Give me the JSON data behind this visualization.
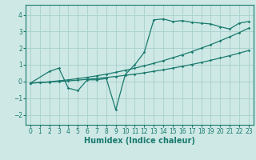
{
  "background_color": "#cde8e5",
  "grid_color": "#aacfcc",
  "line_color": "#1a7a6e",
  "marker_color": "#1a7a6e",
  "xlabel": "Humidex (Indice chaleur)",
  "xlabel_fontsize": 7,
  "xlim": [
    -0.5,
    23.5
  ],
  "ylim": [
    -2.6,
    4.6
  ],
  "xticks": [
    0,
    1,
    2,
    3,
    4,
    5,
    6,
    7,
    8,
    9,
    10,
    11,
    12,
    13,
    14,
    15,
    16,
    17,
    18,
    19,
    20,
    21,
    22,
    23
  ],
  "yticks": [
    -2,
    -1,
    0,
    1,
    2,
    3,
    4
  ],
  "tick_fontsize": 5.5,
  "line1_x": [
    0,
    1,
    2,
    3,
    4,
    5,
    6,
    7,
    8,
    9,
    10,
    11,
    12,
    13,
    14,
    15,
    16,
    17,
    18,
    19,
    20,
    21,
    22,
    23
  ],
  "line1_y": [
    -0.1,
    -0.07,
    -0.04,
    0.0,
    0.04,
    0.08,
    0.13,
    0.18,
    0.24,
    0.3,
    0.37,
    0.44,
    0.52,
    0.61,
    0.7,
    0.8,
    0.91,
    1.02,
    1.14,
    1.27,
    1.41,
    1.55,
    1.7,
    1.86
  ],
  "line2_x": [
    0,
    1,
    2,
    3,
    4,
    5,
    6,
    7,
    8,
    9,
    10,
    11,
    12,
    13,
    14,
    15,
    16,
    17,
    18,
    19,
    20,
    21,
    22,
    23
  ],
  "line2_y": [
    -0.1,
    -0.06,
    -0.02,
    0.04,
    0.1,
    0.17,
    0.25,
    0.34,
    0.44,
    0.55,
    0.67,
    0.8,
    0.94,
    1.09,
    1.25,
    1.42,
    1.6,
    1.79,
    2.0,
    2.21,
    2.44,
    2.68,
    2.93,
    3.2
  ],
  "line3_x": [
    0,
    2,
    3,
    4,
    5,
    6,
    7,
    8,
    9,
    10,
    11,
    12,
    13,
    14,
    15,
    16,
    17,
    18,
    19,
    20,
    21,
    22,
    23
  ],
  "line3_y": [
    -0.1,
    0.6,
    0.8,
    -0.4,
    -0.55,
    0.1,
    0.1,
    0.18,
    -1.7,
    0.42,
    1.0,
    1.75,
    3.7,
    3.75,
    3.6,
    3.65,
    3.55,
    3.5,
    3.45,
    3.28,
    3.15,
    3.5,
    3.6
  ]
}
